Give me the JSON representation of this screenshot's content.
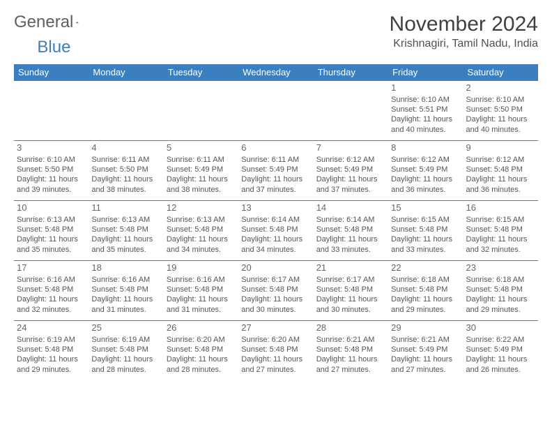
{
  "brand": {
    "part1": "General",
    "part2": "Blue"
  },
  "title": "November 2024",
  "location": "Krishnagiri, Tamil Nadu, India",
  "colors": {
    "header_bg": "#3b7fbf",
    "header_text": "#ffffff",
    "border": "#3b7fbf",
    "body_text": "#555555",
    "title_text": "#404040",
    "background": "#ffffff"
  },
  "typography": {
    "title_fontsize": 30,
    "location_fontsize": 16,
    "dayheader_fontsize": 13,
    "cell_fontsize": 11
  },
  "day_headers": [
    "Sunday",
    "Monday",
    "Tuesday",
    "Wednesday",
    "Thursday",
    "Friday",
    "Saturday"
  ],
  "weeks": [
    [
      {
        "day": "",
        "sunrise": "",
        "sunset": "",
        "daylight": ""
      },
      {
        "day": "",
        "sunrise": "",
        "sunset": "",
        "daylight": ""
      },
      {
        "day": "",
        "sunrise": "",
        "sunset": "",
        "daylight": ""
      },
      {
        "day": "",
        "sunrise": "",
        "sunset": "",
        "daylight": ""
      },
      {
        "day": "",
        "sunrise": "",
        "sunset": "",
        "daylight": ""
      },
      {
        "day": "1",
        "sunrise": "Sunrise: 6:10 AM",
        "sunset": "Sunset: 5:51 PM",
        "daylight": "Daylight: 11 hours and 40 minutes."
      },
      {
        "day": "2",
        "sunrise": "Sunrise: 6:10 AM",
        "sunset": "Sunset: 5:50 PM",
        "daylight": "Daylight: 11 hours and 40 minutes."
      }
    ],
    [
      {
        "day": "3",
        "sunrise": "Sunrise: 6:10 AM",
        "sunset": "Sunset: 5:50 PM",
        "daylight": "Daylight: 11 hours and 39 minutes."
      },
      {
        "day": "4",
        "sunrise": "Sunrise: 6:11 AM",
        "sunset": "Sunset: 5:50 PM",
        "daylight": "Daylight: 11 hours and 38 minutes."
      },
      {
        "day": "5",
        "sunrise": "Sunrise: 6:11 AM",
        "sunset": "Sunset: 5:49 PM",
        "daylight": "Daylight: 11 hours and 38 minutes."
      },
      {
        "day": "6",
        "sunrise": "Sunrise: 6:11 AM",
        "sunset": "Sunset: 5:49 PM",
        "daylight": "Daylight: 11 hours and 37 minutes."
      },
      {
        "day": "7",
        "sunrise": "Sunrise: 6:12 AM",
        "sunset": "Sunset: 5:49 PM",
        "daylight": "Daylight: 11 hours and 37 minutes."
      },
      {
        "day": "8",
        "sunrise": "Sunrise: 6:12 AM",
        "sunset": "Sunset: 5:49 PM",
        "daylight": "Daylight: 11 hours and 36 minutes."
      },
      {
        "day": "9",
        "sunrise": "Sunrise: 6:12 AM",
        "sunset": "Sunset: 5:48 PM",
        "daylight": "Daylight: 11 hours and 36 minutes."
      }
    ],
    [
      {
        "day": "10",
        "sunrise": "Sunrise: 6:13 AM",
        "sunset": "Sunset: 5:48 PM",
        "daylight": "Daylight: 11 hours and 35 minutes."
      },
      {
        "day": "11",
        "sunrise": "Sunrise: 6:13 AM",
        "sunset": "Sunset: 5:48 PM",
        "daylight": "Daylight: 11 hours and 35 minutes."
      },
      {
        "day": "12",
        "sunrise": "Sunrise: 6:13 AM",
        "sunset": "Sunset: 5:48 PM",
        "daylight": "Daylight: 11 hours and 34 minutes."
      },
      {
        "day": "13",
        "sunrise": "Sunrise: 6:14 AM",
        "sunset": "Sunset: 5:48 PM",
        "daylight": "Daylight: 11 hours and 34 minutes."
      },
      {
        "day": "14",
        "sunrise": "Sunrise: 6:14 AM",
        "sunset": "Sunset: 5:48 PM",
        "daylight": "Daylight: 11 hours and 33 minutes."
      },
      {
        "day": "15",
        "sunrise": "Sunrise: 6:15 AM",
        "sunset": "Sunset: 5:48 PM",
        "daylight": "Daylight: 11 hours and 33 minutes."
      },
      {
        "day": "16",
        "sunrise": "Sunrise: 6:15 AM",
        "sunset": "Sunset: 5:48 PM",
        "daylight": "Daylight: 11 hours and 32 minutes."
      }
    ],
    [
      {
        "day": "17",
        "sunrise": "Sunrise: 6:16 AM",
        "sunset": "Sunset: 5:48 PM",
        "daylight": "Daylight: 11 hours and 32 minutes."
      },
      {
        "day": "18",
        "sunrise": "Sunrise: 6:16 AM",
        "sunset": "Sunset: 5:48 PM",
        "daylight": "Daylight: 11 hours and 31 minutes."
      },
      {
        "day": "19",
        "sunrise": "Sunrise: 6:16 AM",
        "sunset": "Sunset: 5:48 PM",
        "daylight": "Daylight: 11 hours and 31 minutes."
      },
      {
        "day": "20",
        "sunrise": "Sunrise: 6:17 AM",
        "sunset": "Sunset: 5:48 PM",
        "daylight": "Daylight: 11 hours and 30 minutes."
      },
      {
        "day": "21",
        "sunrise": "Sunrise: 6:17 AM",
        "sunset": "Sunset: 5:48 PM",
        "daylight": "Daylight: 11 hours and 30 minutes."
      },
      {
        "day": "22",
        "sunrise": "Sunrise: 6:18 AM",
        "sunset": "Sunset: 5:48 PM",
        "daylight": "Daylight: 11 hours and 29 minutes."
      },
      {
        "day": "23",
        "sunrise": "Sunrise: 6:18 AM",
        "sunset": "Sunset: 5:48 PM",
        "daylight": "Daylight: 11 hours and 29 minutes."
      }
    ],
    [
      {
        "day": "24",
        "sunrise": "Sunrise: 6:19 AM",
        "sunset": "Sunset: 5:48 PM",
        "daylight": "Daylight: 11 hours and 29 minutes."
      },
      {
        "day": "25",
        "sunrise": "Sunrise: 6:19 AM",
        "sunset": "Sunset: 5:48 PM",
        "daylight": "Daylight: 11 hours and 28 minutes."
      },
      {
        "day": "26",
        "sunrise": "Sunrise: 6:20 AM",
        "sunset": "Sunset: 5:48 PM",
        "daylight": "Daylight: 11 hours and 28 minutes."
      },
      {
        "day": "27",
        "sunrise": "Sunrise: 6:20 AM",
        "sunset": "Sunset: 5:48 PM",
        "daylight": "Daylight: 11 hours and 27 minutes."
      },
      {
        "day": "28",
        "sunrise": "Sunrise: 6:21 AM",
        "sunset": "Sunset: 5:48 PM",
        "daylight": "Daylight: 11 hours and 27 minutes."
      },
      {
        "day": "29",
        "sunrise": "Sunrise: 6:21 AM",
        "sunset": "Sunset: 5:49 PM",
        "daylight": "Daylight: 11 hours and 27 minutes."
      },
      {
        "day": "30",
        "sunrise": "Sunrise: 6:22 AM",
        "sunset": "Sunset: 5:49 PM",
        "daylight": "Daylight: 11 hours and 26 minutes."
      }
    ]
  ]
}
